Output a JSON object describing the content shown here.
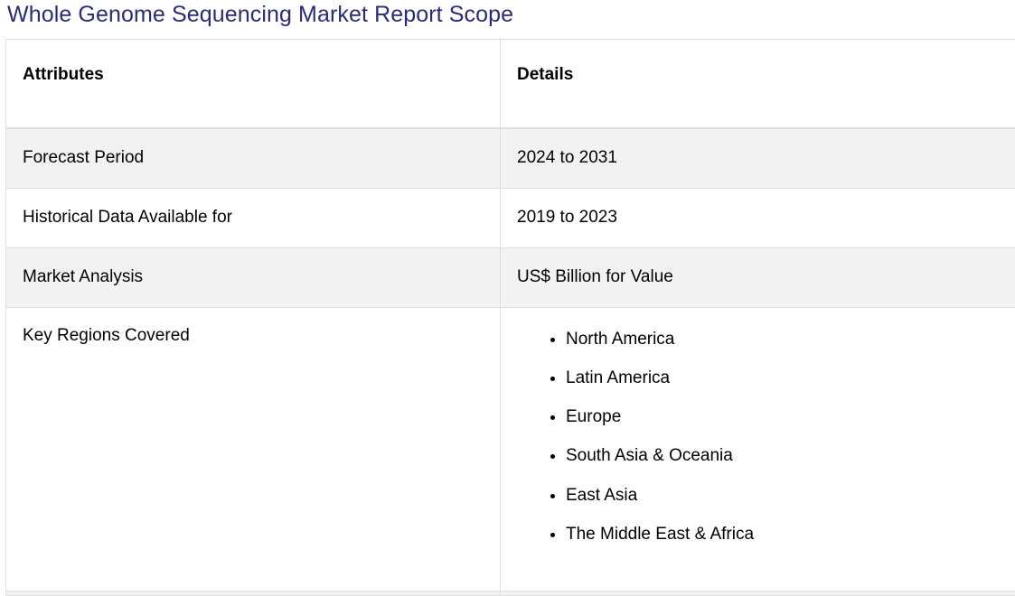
{
  "title": "Whole Genome Sequencing Market Report Scope",
  "table": {
    "headers": [
      "Attributes",
      "Details"
    ],
    "rows": [
      {
        "attribute": "Forecast Period",
        "detail": "2024 to 2031"
      },
      {
        "attribute": "Historical Data Available for",
        "detail": "2019 to 2023"
      },
      {
        "attribute": "Market Analysis",
        "detail": "US$ Billion for Value"
      },
      {
        "attribute": "Key Regions Covered",
        "regions": [
          "North America",
          "Latin America",
          "Europe",
          "South Asia & Oceania",
          "East Asia",
          "The Middle East & Africa"
        ]
      }
    ]
  }
}
